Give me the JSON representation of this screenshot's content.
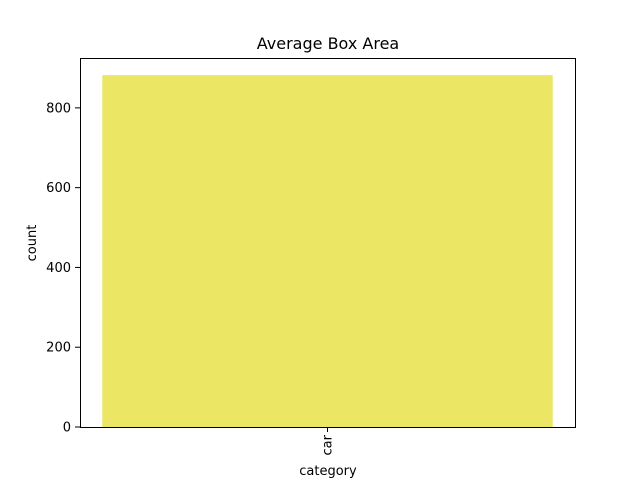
{
  "chart_data": {
    "type": "bar",
    "title": "Average Box Area",
    "xlabel": "category",
    "ylabel": "count",
    "categories": [
      "car"
    ],
    "values": [
      882
    ],
    "ylim": [
      0,
      925
    ],
    "yticks": [
      0,
      200,
      400,
      600,
      800
    ],
    "ytick_labels": [
      "0",
      "200",
      "400",
      "600",
      "800"
    ],
    "grid": false,
    "legend": "none",
    "bar_color": "#ebe663"
  }
}
